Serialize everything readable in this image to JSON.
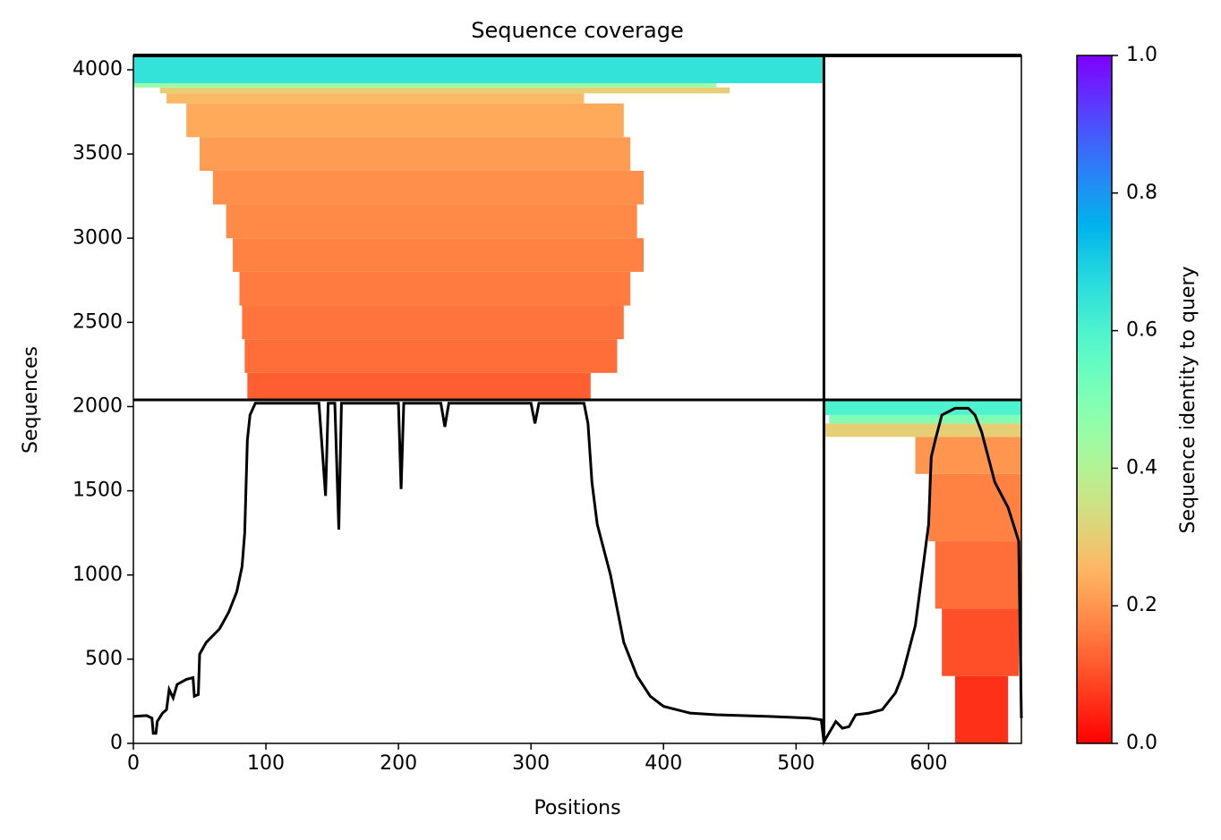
{
  "chart_data": {
    "type": "coverage",
    "title": "Sequence coverage",
    "xlabel": "Positions",
    "ylabel": "Sequences",
    "xlim": [
      0,
      670
    ],
    "ylim": [
      0,
      4085
    ],
    "xticks": [
      0,
      100,
      200,
      300,
      400,
      500,
      600
    ],
    "yticks": [
      0,
      500,
      1000,
      1500,
      2000,
      2500,
      3000,
      3500,
      4000
    ],
    "chain_breaks": [
      521
    ],
    "row_breaks": [
      2040
    ],
    "line_color": "#000000",
    "bands": [
      {
        "y": [
          3920,
          4085
        ],
        "x": [
          0,
          521
        ],
        "identity": 0.65
      },
      {
        "y": [
          3895,
          3920
        ],
        "x": [
          0,
          440
        ],
        "identity": 0.45
      },
      {
        "y": [
          3860,
          3895
        ],
        "x": [
          20,
          450
        ],
        "identity": 0.3
      },
      {
        "y": [
          3800,
          3860
        ],
        "x": [
          25,
          340
        ],
        "identity": 0.26
      },
      {
        "y": [
          3600,
          3800
        ],
        "x": [
          40,
          370
        ],
        "identity": 0.23
      },
      {
        "y": [
          3400,
          3600
        ],
        "x": [
          50,
          375
        ],
        "identity": 0.21
      },
      {
        "y": [
          3200,
          3400
        ],
        "x": [
          60,
          385
        ],
        "identity": 0.19
      },
      {
        "y": [
          3000,
          3200
        ],
        "x": [
          70,
          380
        ],
        "identity": 0.18
      },
      {
        "y": [
          2800,
          3000
        ],
        "x": [
          75,
          385
        ],
        "identity": 0.17
      },
      {
        "y": [
          2600,
          2800
        ],
        "x": [
          80,
          375
        ],
        "identity": 0.16
      },
      {
        "y": [
          2400,
          2600
        ],
        "x": [
          82,
          370
        ],
        "identity": 0.15
      },
      {
        "y": [
          2200,
          2400
        ],
        "x": [
          84,
          365
        ],
        "identity": 0.14
      },
      {
        "y": [
          2040,
          2200
        ],
        "x": [
          86,
          345
        ],
        "identity": 0.12
      },
      {
        "y": [
          1950,
          2040
        ],
        "x": [
          521,
          670
        ],
        "identity": 0.6
      },
      {
        "y": [
          1900,
          1950
        ],
        "x": [
          525,
          670
        ],
        "identity": 0.5
      },
      {
        "y": [
          1820,
          1900
        ],
        "x": [
          521,
          670
        ],
        "identity": 0.3
      },
      {
        "y": [
          1600,
          1820
        ],
        "x": [
          590,
          670
        ],
        "identity": 0.2
      },
      {
        "y": [
          1200,
          1600
        ],
        "x": [
          600,
          670
        ],
        "identity": 0.17
      },
      {
        "y": [
          800,
          1200
        ],
        "x": [
          605,
          670
        ],
        "identity": 0.14
      },
      {
        "y": [
          400,
          800
        ],
        "x": [
          610,
          668
        ],
        "identity": 0.1
      },
      {
        "y": [
          0,
          400
        ],
        "x": [
          620,
          660
        ],
        "identity": 0.06
      }
    ],
    "coverage": {
      "x": [
        0,
        10,
        14,
        15,
        17,
        18,
        22,
        25,
        27,
        30,
        33,
        40,
        45,
        46,
        49,
        50,
        55,
        65,
        72,
        78,
        82,
        84,
        86,
        88,
        92,
        140,
        142,
        145,
        147,
        152,
        155,
        157,
        200,
        202,
        204,
        232,
        235,
        238,
        300,
        303,
        306,
        340,
        343,
        346,
        350,
        355,
        360,
        365,
        370,
        380,
        390,
        400,
        420,
        440,
        480,
        510,
        519,
        521,
        530,
        535,
        540,
        545,
        555,
        565,
        575,
        580,
        585,
        590,
        595,
        600,
        602,
        605,
        610,
        620,
        630,
        635,
        640,
        645,
        650,
        660,
        668,
        670
      ],
      "values": [
        160,
        165,
        150,
        60,
        60,
        130,
        180,
        200,
        320,
        270,
        350,
        380,
        390,
        280,
        290,
        530,
        600,
        680,
        780,
        900,
        1050,
        1250,
        1800,
        1950,
        2020,
        2020,
        1800,
        1470,
        2020,
        2020,
        1270,
        2020,
        2020,
        1510,
        2020,
        2020,
        1880,
        2020,
        2020,
        1900,
        2020,
        2020,
        1900,
        1550,
        1300,
        1150,
        1000,
        800,
        600,
        400,
        280,
        220,
        180,
        170,
        160,
        150,
        140,
        10,
        130,
        90,
        100,
        170,
        180,
        200,
        300,
        400,
        550,
        700,
        1000,
        1300,
        1700,
        1800,
        1950,
        1990,
        1990,
        1950,
        1850,
        1700,
        1550,
        1400,
        1200,
        150
      ]
    },
    "colorbar": {
      "label": "Sequence identity to query",
      "lim": [
        0,
        1
      ],
      "ticks": [
        {
          "value": 0,
          "label": "0.0"
        },
        {
          "value": 0.2,
          "label": "0.2"
        },
        {
          "value": 0.4,
          "label": "0.4"
        },
        {
          "value": 0.6,
          "label": "0.6"
        },
        {
          "value": 0.8,
          "label": "0.8"
        },
        {
          "value": 1,
          "label": "1.0"
        }
      ]
    }
  }
}
